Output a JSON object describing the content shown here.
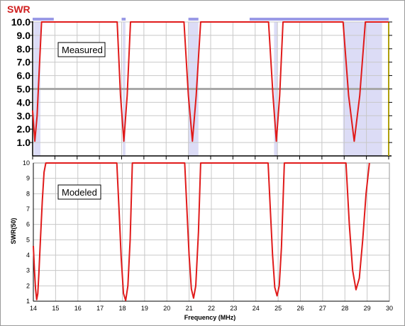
{
  "colors": {
    "curve": "#e01a1a",
    "band": "#dcdcf6",
    "band_bar": "#9a9ae6",
    "reference_line": "#a8a8a8",
    "grid": "#c8c8c8",
    "swr_label": "#d02020",
    "right_edge_marker": "#b0a010"
  },
  "chart_data": [
    {
      "type": "line",
      "panel": "measured",
      "corner_label": "SWR",
      "legend": "Measured",
      "ylim": [
        0,
        10
      ],
      "yticks": [
        "10.0",
        "9.0",
        "8.0",
        "7.0",
        "6.0",
        "5.0",
        "4.0",
        "3.0",
        "2.0",
        "1.0"
      ],
      "xlim": [
        14,
        30
      ],
      "xtick_labels_shown": false,
      "reference_line_y": 5.0,
      "bands": [
        [
          14.05,
          14.35
        ],
        [
          18.05,
          18.17
        ],
        [
          21.0,
          21.45
        ],
        [
          24.85,
          25.0
        ],
        [
          27.95,
          29.7
        ]
      ],
      "top_bars": [
        [
          14.0,
          14.95
        ],
        [
          18.0,
          18.18
        ],
        [
          21.0,
          21.45
        ],
        [
          24.85,
          25.0
        ],
        [
          23.75,
          30.0
        ]
      ],
      "series": [
        {
          "x": [
            14.0,
            14.1,
            14.2,
            14.3,
            14.4,
            14.55,
            17.8,
            17.95,
            18.1,
            18.25,
            18.4,
            20.8,
            21.0,
            21.18,
            21.35,
            21.55,
            24.6,
            24.8,
            24.95,
            25.1,
            25.25,
            27.95,
            28.2,
            28.45,
            28.7,
            28.95,
            30.0
          ],
          "y": [
            3.4,
            1.1,
            3.0,
            6.5,
            10.0,
            10.0,
            10.0,
            4.5,
            1.1,
            4.5,
            10.0,
            10.0,
            4.5,
            1.1,
            4.5,
            10.0,
            10.0,
            4.5,
            1.1,
            4.5,
            10.0,
            10.0,
            4.5,
            1.1,
            4.5,
            10.0,
            10.0
          ]
        }
      ]
    },
    {
      "type": "line",
      "panel": "modeled",
      "legend": "Modeled",
      "ylabel": "SWR(50)",
      "xlabel": "Frequency (MHz)",
      "ylim": [
        1,
        10
      ],
      "yticks": [
        "1",
        "2",
        "3",
        "4",
        "5",
        "6",
        "7",
        "8",
        "9",
        "10"
      ],
      "xlim": [
        14,
        30
      ],
      "xticks": [
        "14",
        "15",
        "16",
        "17",
        "18",
        "19",
        "20",
        "21",
        "22",
        "23",
        "24",
        "25",
        "26",
        "27",
        "28",
        "29",
        "30"
      ],
      "series": [
        {
          "x": [
            14.0,
            14.05,
            14.1,
            14.15,
            14.2,
            14.25,
            14.32,
            14.4,
            14.48,
            14.56,
            17.75,
            17.85,
            17.95,
            18.05,
            18.15,
            18.25,
            18.35,
            18.45,
            20.8,
            20.9,
            21.0,
            21.1,
            21.2,
            21.3,
            21.42,
            21.52,
            24.55,
            24.65,
            24.75,
            24.85,
            24.95,
            25.05,
            25.15,
            25.28,
            28.05,
            28.2,
            28.35,
            28.5,
            28.65,
            28.8,
            28.95,
            29.1
          ],
          "y": [
            4.6,
            3.0,
            1.8,
            1.1,
            1.5,
            2.8,
            5.0,
            7.5,
            9.4,
            10.0,
            10.0,
            7.0,
            3.8,
            1.5,
            1.05,
            2.0,
            5.0,
            10.0,
            10.0,
            7.0,
            4.0,
            1.8,
            1.2,
            2.0,
            5.5,
            10.0,
            10.0,
            7.0,
            4.0,
            1.9,
            1.35,
            2.0,
            4.5,
            10.0,
            10.0,
            6.0,
            3.0,
            1.75,
            2.5,
            5.0,
            8.0,
            10.0
          ]
        }
      ]
    }
  ]
}
